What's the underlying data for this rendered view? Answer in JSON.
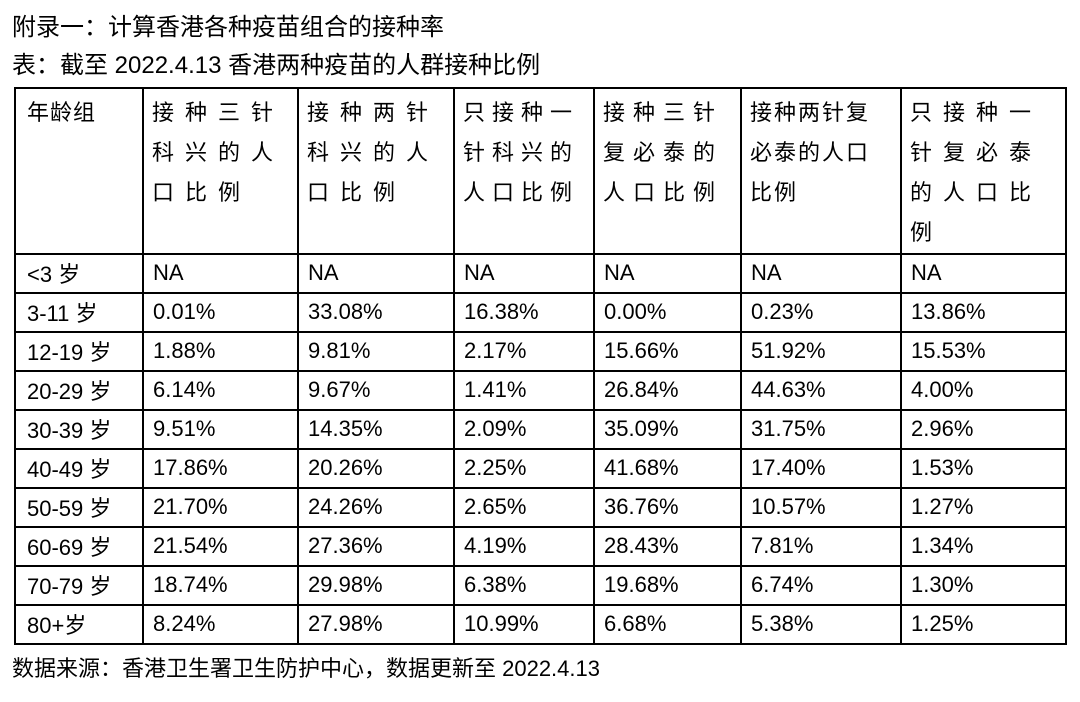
{
  "page": {
    "title": "附录一：计算香港各种疫苗组合的接种率",
    "subtitle": "表：截至 2022.4.13 香港两种疫苗的人群接种比例",
    "footer": "数据来源：香港卫生署卫生防护中心，数据更新至 2022.4.13"
  },
  "table": {
    "headers": [
      "年龄组",
      "接种三针\n科兴的人\n口比例",
      "接种两针\n科兴的人\n口比例",
      "只接种一\n针科兴的\n人口比例",
      "接种三针\n复必泰的\n人口比例",
      "接种两针复\n必泰的人口\n比例",
      "只接种一\n针复必泰\n的人口比\n例"
    ],
    "rows": [
      {
        "age": "<3 岁",
        "values": [
          "NA",
          "NA",
          "NA",
          "NA",
          "NA",
          "NA"
        ]
      },
      {
        "age": "3-11 岁",
        "values": [
          "0.01%",
          "33.08%",
          "16.38%",
          "0.00%",
          "0.23%",
          "13.86%"
        ]
      },
      {
        "age": "12-19 岁",
        "values": [
          "1.88%",
          "9.81%",
          "2.17%",
          "15.66%",
          "51.92%",
          "15.53%"
        ]
      },
      {
        "age": "20-29 岁",
        "values": [
          "6.14%",
          "9.67%",
          "1.41%",
          "26.84%",
          "44.63%",
          "4.00%"
        ]
      },
      {
        "age": "30-39 岁",
        "values": [
          "9.51%",
          "14.35%",
          "2.09%",
          "35.09%",
          "31.75%",
          "2.96%"
        ]
      },
      {
        "age": "40-49 岁",
        "values": [
          "17.86%",
          "20.26%",
          "2.25%",
          "41.68%",
          "17.40%",
          "1.53%"
        ]
      },
      {
        "age": "50-59 岁",
        "values": [
          "21.70%",
          "24.26%",
          "2.65%",
          "36.76%",
          "10.57%",
          "1.27%"
        ]
      },
      {
        "age": "60-69 岁",
        "values": [
          "21.54%",
          "27.36%",
          "4.19%",
          "28.43%",
          "7.81%",
          "1.34%"
        ]
      },
      {
        "age": "70-79 岁",
        "values": [
          "18.74%",
          "29.98%",
          "6.38%",
          "19.68%",
          "6.74%",
          "1.30%"
        ]
      },
      {
        "age": "80+岁",
        "values": [
          "8.24%",
          "27.98%",
          "10.99%",
          "6.68%",
          "5.38%",
          "1.25%"
        ]
      }
    ]
  },
  "colors": {
    "text": "#000000",
    "border": "#000000",
    "background": "#ffffff"
  }
}
